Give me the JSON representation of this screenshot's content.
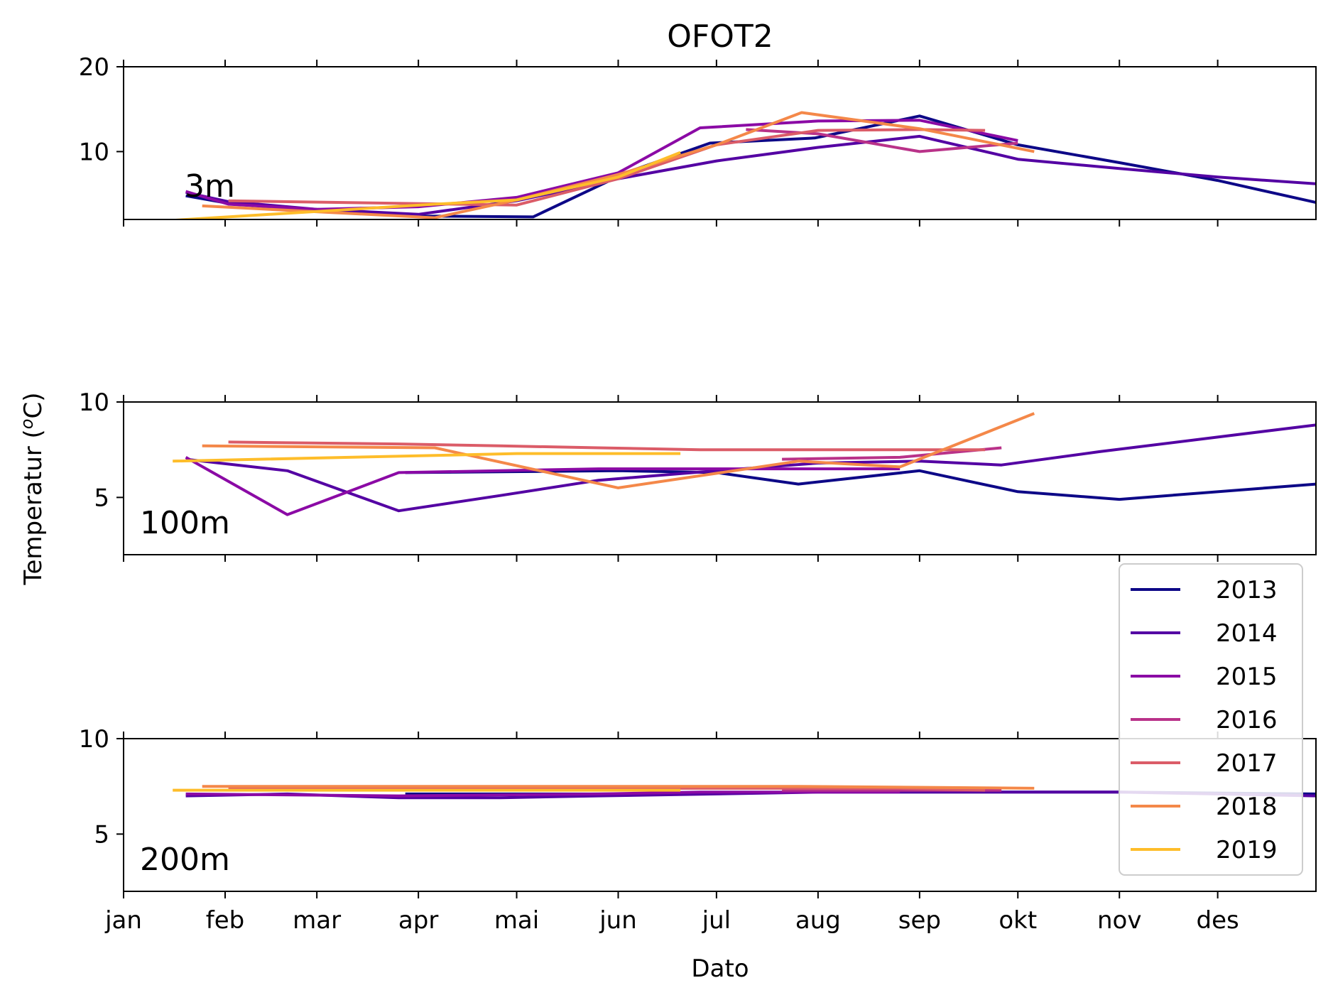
{
  "chart_data": {
    "type": "line",
    "title": "OFOT2",
    "xlabel": "Dato",
    "ylabel": "Temperatur (",
    "ylabel_sup": "o",
    "ylabel_unit": "C)",
    "x_ticks": [
      "jan",
      "feb",
      "mar",
      "apr",
      "mai",
      "jun",
      "jul",
      "aug",
      "sep",
      "okt",
      "nov",
      "des"
    ],
    "xlim": [
      "01-01",
      "12-31"
    ],
    "legend": {
      "placement": "lower-right",
      "entries": [
        "2013",
        "2014",
        "2015",
        "2016",
        "2017",
        "2018",
        "2019"
      ]
    },
    "colors": {
      "2013": "#0d0887",
      "2014": "#5402a3",
      "2015": "#8b0aa5",
      "2016": "#b93289",
      "2017": "#db5c68",
      "2018": "#f48849",
      "2019": "#febd2a"
    },
    "panels": [
      {
        "label": "3m",
        "ylim": [
          2,
          20
        ],
        "yticks": [
          10,
          20
        ],
        "series": [
          {
            "name": "2013",
            "x": [
              "01-20",
              "02-02",
              "03-01",
              "04-01",
              "05-06",
              "06-04",
              "06-29",
              "07-31",
              "09-01",
              "10-01",
              "11-01",
              "12-01",
              "12-31"
            ],
            "y": [
              4.8,
              3.9,
              3.0,
              2.4,
              2.3,
              7.6,
              11.0,
              11.6,
              14.2,
              10.8,
              8.7,
              6.6,
              4.0
            ]
          },
          {
            "name": "2014",
            "x": [
              "01-20",
              "02-02",
              "03-01",
              "04-01",
              "05-01",
              "06-01",
              "07-01",
              "08-01",
              "09-01",
              "10-01",
              "11-01",
              "12-01",
              "12-31"
            ],
            "y": [
              5.2,
              4.1,
              3.2,
              2.6,
              4.2,
              6.8,
              8.9,
              10.5,
              11.8,
              9.1,
              8.0,
              7.0,
              6.2
            ]
          },
          {
            "name": "2015",
            "x": [
              "01-20",
              "02-02",
              "03-01",
              "04-01",
              "05-01",
              "06-01",
              "06-26",
              "08-01",
              "09-01",
              "10-01"
            ],
            "y": [
              5.3,
              3.8,
              3.2,
              3.5,
              4.6,
              7.5,
              12.8,
              13.6,
              13.7,
              11.3
            ]
          },
          {
            "name": "2016",
            "x": [
              "07-10",
              "08-01",
              "09-01",
              "10-01"
            ],
            "y": [
              12.6,
              12.1,
              10.0,
              11.0
            ]
          },
          {
            "name": "2017",
            "x": [
              "02-02",
              "05-01",
              "06-01",
              "07-01",
              "08-01",
              "09-01",
              "09-21"
            ],
            "y": [
              4.2,
              3.7,
              6.8,
              10.8,
              12.5,
              12.6,
              12.5
            ]
          },
          {
            "name": "2018",
            "x": [
              "01-25",
              "04-06",
              "05-01",
              "06-01",
              "07-01",
              "07-27",
              "09-01",
              "10-06"
            ],
            "y": [
              3.6,
              2.2,
              4.3,
              7.3,
              10.8,
              14.6,
              12.7,
              10.0
            ]
          },
          {
            "name": "2019",
            "x": [
              "01-16",
              "04-06",
              "05-01",
              "06-01",
              "06-20"
            ],
            "y": [
              1.9,
              3.8,
              4.3,
              7.0,
              9.9
            ]
          }
        ]
      },
      {
        "label": "100m",
        "ylim": [
          2,
          10
        ],
        "yticks": [
          5,
          10
        ],
        "series": [
          {
            "name": "2013",
            "x": [
              "03-28",
              "06-01",
              "07-01",
              "07-26",
              "09-01",
              "10-01",
              "11-01",
              "12-31"
            ],
            "y": [
              6.3,
              6.4,
              6.3,
              5.7,
              6.4,
              5.3,
              4.9,
              5.7
            ]
          },
          {
            "name": "2014",
            "x": [
              "01-20",
              "02-20",
              "03-26",
              "04-26",
              "05-26",
              "07-01",
              "08-01",
              "09-01",
              "09-26",
              "10-26",
              "12-31"
            ],
            "y": [
              7.0,
              6.4,
              4.3,
              5.1,
              5.9,
              6.4,
              6.8,
              6.9,
              6.7,
              7.4,
              8.8
            ]
          },
          {
            "name": "2015",
            "x": [
              "01-20",
              "02-20",
              "03-26",
              "04-26",
              "05-26",
              "06-26",
              "07-26",
              "08-26"
            ],
            "y": [
              7.1,
              4.1,
              6.3,
              6.4,
              6.5,
              6.5,
              6.5,
              6.5
            ]
          },
          {
            "name": "2016",
            "x": [
              "07-21",
              "08-26",
              "09-26"
            ],
            "y": [
              7.0,
              7.1,
              7.6
            ]
          },
          {
            "name": "2017",
            "x": [
              "02-02",
              "03-26",
              "04-26",
              "05-26",
              "06-26",
              "07-26",
              "08-26",
              "09-21"
            ],
            "y": [
              7.9,
              7.8,
              7.7,
              7.6,
              7.5,
              7.5,
              7.5,
              7.5
            ]
          },
          {
            "name": "2018",
            "x": [
              "01-25",
              "04-06",
              "06-01",
              "07-26",
              "08-26",
              "10-06"
            ],
            "y": [
              7.7,
              7.6,
              5.5,
              6.9,
              6.6,
              9.4
            ]
          },
          {
            "name": "2019",
            "x": [
              "01-16",
              "04-06",
              "05-01",
              "06-01",
              "06-20"
            ],
            "y": [
              6.9,
              7.2,
              7.3,
              7.3,
              7.3
            ]
          }
        ]
      },
      {
        "label": "200m",
        "ylim": [
          2,
          10
        ],
        "yticks": [
          5,
          10
        ],
        "series": [
          {
            "name": "2013",
            "x": [
              "03-28",
              "06-01",
              "07-26",
              "09-01",
              "10-01",
              "11-01",
              "12-31"
            ],
            "y": [
              7.1,
              7.1,
              7.2,
              7.2,
              7.2,
              7.2,
              7.1
            ]
          },
          {
            "name": "2014",
            "x": [
              "01-20",
              "02-20",
              "03-26",
              "04-26",
              "05-26",
              "07-01",
              "08-01",
              "09-01",
              "10-01",
              "11-01",
              "12-31"
            ],
            "y": [
              7.0,
              7.1,
              6.9,
              6.9,
              7.0,
              7.1,
              7.2,
              7.2,
              7.2,
              7.2,
              7.0
            ]
          },
          {
            "name": "2015",
            "x": [
              "01-20",
              "03-26",
              "05-26",
              "06-26",
              "07-26",
              "08-26"
            ],
            "y": [
              7.1,
              7.0,
              7.1,
              7.2,
              7.2,
              7.2
            ]
          },
          {
            "name": "2016",
            "x": [
              "07-21",
              "08-26",
              "09-26"
            ],
            "y": [
              7.3,
              7.3,
              7.3
            ]
          },
          {
            "name": "2017",
            "x": [
              "02-02",
              "04-26",
              "06-26",
              "08-26",
              "09-21"
            ],
            "y": [
              7.4,
              7.4,
              7.4,
              7.4,
              7.3
            ]
          },
          {
            "name": "2018",
            "x": [
              "01-25",
              "04-06",
              "06-01",
              "07-26",
              "10-06"
            ],
            "y": [
              7.5,
              7.5,
              7.5,
              7.5,
              7.4
            ]
          },
          {
            "name": "2019",
            "x": [
              "01-16",
              "04-06",
              "06-20"
            ],
            "y": [
              7.3,
              7.3,
              7.3
            ]
          }
        ]
      }
    ]
  }
}
